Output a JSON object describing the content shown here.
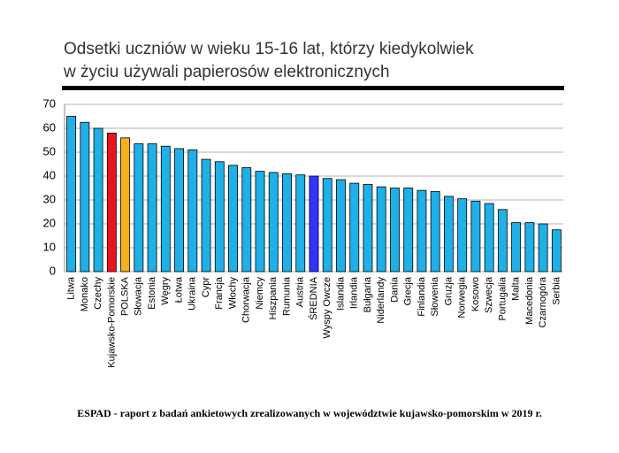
{
  "chart_data": {
    "type": "bar",
    "title": [
      "Odsetki uczniów w wieku 15-16 lat, którzy kiedykolwiek",
      "w życiu używali papierosów elektronicznych"
    ],
    "categories": [
      "Litwa",
      "Monako",
      "Czechy",
      "Kujawsko-Pomorskie",
      "POLSKA",
      "Słowacja",
      "Estonia",
      "Węgry",
      "Łotwa",
      "Ukraina",
      "Cypr",
      "Francja",
      "Włochy",
      "Chorwacja",
      "Niemcy",
      "Hiszpania",
      "Rumunia",
      "Austria",
      "ŚREDNIA",
      "Wyspy Owcze",
      "Islandia",
      "Irlandia",
      "Bułgaria",
      "Niderlandy",
      "Dania",
      "Grecja",
      "Finlandia",
      "Słowenia",
      "Gruzja",
      "Norwegia",
      "Kosowo",
      "Szwecja",
      "Portugalia",
      "Malta",
      "Macedonia",
      "Czarnogóra",
      "Serbia"
    ],
    "values": [
      65,
      62.5,
      60,
      58,
      56,
      53.5,
      53.5,
      52.5,
      51.5,
      51,
      47,
      46,
      44.5,
      43.5,
      42,
      41.5,
      41,
      40.5,
      40,
      39,
      38.5,
      37,
      36.5,
      35.5,
      35,
      35,
      34,
      33.5,
      31.5,
      30.5,
      29.5,
      28.5,
      26,
      20.5,
      20.5,
      20,
      17.5
    ],
    "colors": [
      "#1fb0e8",
      "#1fb0e8",
      "#1fb0e8",
      "#e8141c",
      "#f6b21a",
      "#1fb0e8",
      "#1fb0e8",
      "#1fb0e8",
      "#1fb0e8",
      "#1fb0e8",
      "#1fb0e8",
      "#1fb0e8",
      "#1fb0e8",
      "#1fb0e8",
      "#1fb0e8",
      "#1fb0e8",
      "#1fb0e8",
      "#1fb0e8",
      "#3333ff",
      "#1fb0e8",
      "#1fb0e8",
      "#1fb0e8",
      "#1fb0e8",
      "#1fb0e8",
      "#1fb0e8",
      "#1fb0e8",
      "#1fb0e8",
      "#1fb0e8",
      "#1fb0e8",
      "#1fb0e8",
      "#1fb0e8",
      "#1fb0e8",
      "#1fb0e8",
      "#1fb0e8",
      "#1fb0e8",
      "#1fb0e8",
      "#1fb0e8"
    ],
    "ylim": [
      0,
      70
    ],
    "yticks": [
      0,
      10,
      20,
      30,
      40,
      50,
      60,
      70
    ],
    "grid": true,
    "source": "ESPAD - raport z badań ankietowych zrealizowanych w województwie kujawsko-pomorskim w 2019 r."
  }
}
